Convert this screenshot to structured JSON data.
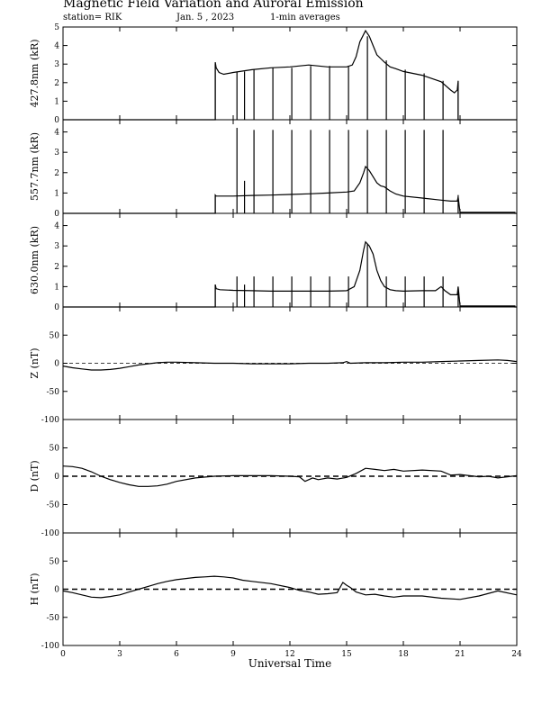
{
  "header": {
    "title": "Magnetic Field Variation and Auroral Emission",
    "station": "station= RIK",
    "date": "Jan. 5 , 2023",
    "averaging": "1-min averages"
  },
  "chart_data": [
    {
      "type": "line",
      "panel": "aurora-4278",
      "ylabel": "427.8nm (kR)",
      "ylim": [
        0,
        5
      ],
      "yticks": [
        0,
        1,
        2,
        3,
        4,
        5
      ],
      "xlim": [
        0,
        24
      ],
      "x": [
        8.05,
        8.1,
        8.25,
        8.5,
        9.0,
        10.0,
        11.0,
        12.0,
        13.0,
        14.0,
        15.0,
        15.3,
        15.5,
        15.7,
        15.9,
        16.0,
        16.2,
        16.4,
        16.6,
        16.8,
        17.0,
        17.3,
        17.6,
        18.0,
        19.0,
        20.0,
        20.5,
        20.7,
        20.85,
        20.9
      ],
      "values": [
        3.1,
        2.8,
        2.55,
        2.45,
        2.55,
        2.7,
        2.8,
        2.85,
        2.95,
        2.85,
        2.85,
        2.95,
        3.4,
        4.2,
        4.6,
        4.8,
        4.5,
        4.0,
        3.5,
        3.3,
        3.1,
        2.85,
        2.75,
        2.6,
        2.4,
        2.05,
        1.6,
        1.45,
        1.6,
        2.1
      ],
      "spikes": [
        8.05,
        9.2,
        9.6,
        10.1,
        11.1,
        12.1,
        13.1,
        14.1,
        15.1,
        16.1,
        17.1,
        18.1,
        19.1,
        20.1,
        20.9
      ],
      "spike_tops": [
        3.0,
        2.6,
        2.6,
        2.7,
        2.8,
        2.8,
        2.9,
        2.9,
        2.9,
        4.5,
        3.2,
        2.7,
        2.5,
        2.1,
        1.9
      ]
    },
    {
      "type": "line",
      "panel": "aurora-5577",
      "ylabel": "557.7nm (kR)",
      "ylim": [
        0,
        4.6
      ],
      "yticks": [
        0,
        1,
        2,
        3,
        4
      ],
      "xlim": [
        0,
        24
      ],
      "x": [
        8.05,
        8.1,
        9.0,
        10.0,
        11.0,
        12.0,
        13.0,
        14.0,
        15.0,
        15.4,
        15.7,
        15.9,
        16.0,
        16.2,
        16.4,
        16.6,
        16.8,
        17.0,
        17.3,
        17.6,
        18.0,
        19.0,
        20.0,
        20.5,
        20.85,
        20.9,
        21.0,
        23.9
      ],
      "values": [
        0.9,
        0.85,
        0.85,
        0.88,
        0.9,
        0.93,
        0.96,
        1.0,
        1.05,
        1.1,
        1.5,
        2.0,
        2.3,
        2.1,
        1.8,
        1.5,
        1.35,
        1.3,
        1.1,
        0.95,
        0.85,
        0.75,
        0.65,
        0.6,
        0.6,
        0.8,
        0.05,
        0.05
      ],
      "spikes": [
        8.05,
        9.2,
        9.6,
        10.1,
        11.1,
        12.1,
        13.1,
        14.1,
        15.1,
        16.1,
        17.1,
        18.1,
        19.1,
        20.1,
        20.9
      ],
      "spike_tops": [
        0.9,
        4.2,
        1.6,
        4.1,
        4.1,
        4.1,
        4.1,
        4.1,
        4.1,
        4.1,
        4.1,
        4.1,
        4.1,
        4.1,
        0.9
      ]
    },
    {
      "type": "line",
      "panel": "aurora-6300",
      "ylabel": "630.0nm (kR)",
      "ylim": [
        0,
        4.6
      ],
      "yticks": [
        0,
        1,
        2,
        3,
        4
      ],
      "xlim": [
        0,
        24
      ],
      "x": [
        8.05,
        8.1,
        8.3,
        9.0,
        10.0,
        11.0,
        12.0,
        13.0,
        14.0,
        15.0,
        15.4,
        15.7,
        15.9,
        16.0,
        16.2,
        16.4,
        16.6,
        16.8,
        17.0,
        17.3,
        17.6,
        18.0,
        19.0,
        19.7,
        20.0,
        20.2,
        20.5,
        20.85,
        20.9,
        21.0,
        23.9
      ],
      "values": [
        1.1,
        0.9,
        0.85,
        0.82,
        0.8,
        0.78,
        0.78,
        0.78,
        0.78,
        0.8,
        1.0,
        1.8,
        2.8,
        3.2,
        3.0,
        2.6,
        1.8,
        1.3,
        1.0,
        0.85,
        0.8,
        0.78,
        0.8,
        0.8,
        1.0,
        0.8,
        0.6,
        0.6,
        1.0,
        0.05,
        0.05
      ],
      "spikes": [
        8.05,
        9.2,
        9.6,
        10.1,
        11.1,
        12.1,
        13.1,
        14.1,
        15.1,
        16.1,
        17.1,
        18.1,
        19.1,
        20.1,
        20.9
      ],
      "spike_tops": [
        1.1,
        1.5,
        1.1,
        1.5,
        1.5,
        1.5,
        1.5,
        1.5,
        1.5,
        3.1,
        1.5,
        1.5,
        1.5,
        1.5,
        1.0
      ]
    },
    {
      "type": "line",
      "panel": "mag-z",
      "ylabel": "Z (nT)",
      "ylim": [
        -100,
        100
      ],
      "yticks": [
        -100,
        -50,
        0,
        50
      ],
      "xlim": [
        0,
        24
      ],
      "x": [
        0,
        0.5,
        1.0,
        1.5,
        2.0,
        2.5,
        3.0,
        3.5,
        4.0,
        4.5,
        5.0,
        5.5,
        6.0,
        7.0,
        8.0,
        9.0,
        10.0,
        11.0,
        12.0,
        13.0,
        14.0,
        14.8,
        15.0,
        15.2,
        16.0,
        17.0,
        18.0,
        19.0,
        20.0,
        21.0,
        22.0,
        23.0,
        23.5,
        24.0
      ],
      "values": [
        -5,
        -8,
        -10,
        -12,
        -12,
        -11,
        -9,
        -6,
        -3,
        -1,
        1,
        2,
        2,
        1,
        0,
        0,
        -1,
        -1,
        -1,
        0,
        0,
        1,
        3,
        0,
        1,
        1,
        2,
        2,
        3,
        4,
        5,
        6,
        5,
        3
      ]
    },
    {
      "type": "line",
      "panel": "mag-d",
      "ylabel": "D (nT)",
      "ylim": [
        -100,
        100
      ],
      "yticks": [
        -100,
        -50,
        0,
        50
      ],
      "xlim": [
        0,
        24
      ],
      "x": [
        0,
        0.5,
        1.0,
        1.5,
        2.0,
        2.5,
        3.0,
        3.5,
        4.0,
        4.5,
        5.0,
        5.5,
        6.0,
        7.0,
        8.0,
        9.0,
        10.0,
        11.0,
        12.0,
        12.5,
        12.8,
        13.2,
        13.5,
        14.0,
        14.5,
        15.0,
        15.5,
        16.0,
        16.5,
        17.0,
        17.5,
        18.0,
        19.0,
        20.0,
        20.5,
        21.0,
        22.0,
        22.5,
        23.0,
        24.0
      ],
      "values": [
        18,
        17,
        14,
        8,
        0,
        -6,
        -11,
        -15,
        -18,
        -18,
        -17,
        -14,
        -9,
        -3,
        0,
        1,
        1,
        1,
        0,
        -1,
        -9,
        -3,
        -6,
        -3,
        -5,
        -2,
        5,
        14,
        12,
        10,
        12,
        9,
        11,
        9,
        2,
        3,
        -1,
        0,
        -3,
        1
      ]
    },
    {
      "type": "line",
      "panel": "mag-h",
      "ylabel": "H (nT)",
      "ylim": [
        -100,
        100
      ],
      "yticks": [
        -100,
        -50,
        0,
        50
      ],
      "xlim": [
        0,
        24
      ],
      "x": [
        0,
        0.5,
        1.0,
        1.5,
        2.0,
        2.5,
        3.0,
        3.5,
        4.0,
        4.5,
        5.0,
        5.5,
        6.0,
        6.5,
        7.0,
        7.5,
        8.0,
        8.5,
        9.0,
        9.5,
        10.0,
        11.0,
        12.0,
        12.5,
        13.0,
        13.5,
        14.0,
        14.5,
        14.8,
        15.0,
        15.2,
        15.5,
        16.0,
        16.5,
        17.0,
        17.5,
        18.0,
        19.0,
        20.0,
        21.0,
        22.0,
        23.0,
        24.0
      ],
      "values": [
        -3,
        -6,
        -10,
        -14,
        -15,
        -13,
        -10,
        -5,
        0,
        5,
        10,
        14,
        17,
        19,
        21,
        22,
        23,
        22,
        20,
        16,
        14,
        10,
        3,
        -2,
        -5,
        -9,
        -8,
        -6,
        12,
        7,
        3,
        -5,
        -10,
        -9,
        -12,
        -14,
        -12,
        -12,
        -16,
        -18,
        -12,
        -3,
        -10
      ]
    }
  ],
  "xaxis": {
    "ticks": [
      0,
      3,
      6,
      9,
      12,
      15,
      18,
      21,
      24
    ],
    "label": "Universal Time"
  }
}
